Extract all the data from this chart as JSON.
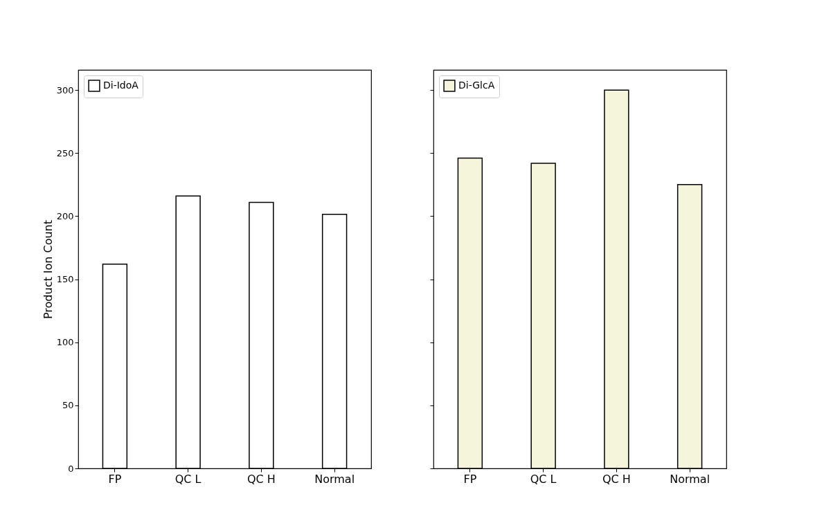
{
  "chart_data": [
    {
      "type": "bar",
      "categories": [
        "FP",
        "QC L",
        "QC H",
        "Normal"
      ],
      "ylabel": "Product Ion Count",
      "ylim": [
        0,
        316
      ],
      "yticks": [
        0,
        50,
        100,
        150,
        200,
        250,
        300
      ],
      "legend": "top left",
      "series": [
        {
          "name": "Di-IdoA",
          "color": "#ffffff",
          "values": [
            162,
            216,
            211,
            201.5
          ]
        }
      ]
    },
    {
      "type": "bar",
      "categories": [
        "FP",
        "QC L",
        "QC H",
        "Normal"
      ],
      "ylim": [
        0,
        316
      ],
      "yticks": [
        0,
        50,
        100,
        150,
        200,
        250,
        300
      ],
      "legend": "top left",
      "tick_labels": "x",
      "series": [
        {
          "name": "Di-GlcA",
          "color": "#f5f5dc",
          "values": [
            246,
            242,
            300,
            225
          ]
        }
      ]
    }
  ]
}
